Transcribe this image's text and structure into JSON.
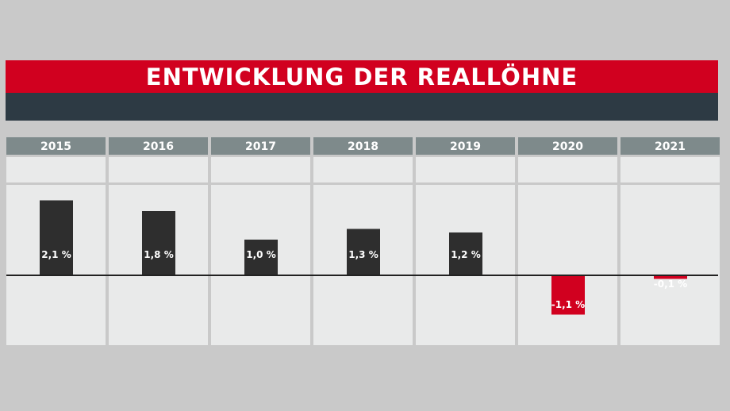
{
  "header": {
    "title": "ENTWICKLUNG DER REALLÖHNE"
  },
  "colors": {
    "background": "#c9c9c9",
    "title_bar": "#d1001f",
    "subtitle_bar": "#2d3a44",
    "column_header": "#7e8a8b",
    "column_body": "#e9eaea",
    "positive_bar": "#2e2e2e",
    "negative_bar": "#d1001f",
    "zero_line": "#222222"
  },
  "chart_data": {
    "type": "bar",
    "categories": [
      "2015",
      "2016",
      "2017",
      "2018",
      "2019",
      "2020",
      "2021"
    ],
    "values": [
      2.1,
      1.8,
      1.0,
      1.3,
      1.2,
      -1.1,
      -0.1
    ],
    "labels": [
      "2,1 %",
      "1,8 %",
      "1,0 %",
      "1,3 %",
      "1,2 %",
      "-1,1 %",
      "-0,1 %"
    ],
    "title": "ENTWICKLUNG DER REALLÖHNE",
    "xlabel": "",
    "ylabel": "",
    "ylim": [
      -2.0,
      2.6
    ]
  }
}
